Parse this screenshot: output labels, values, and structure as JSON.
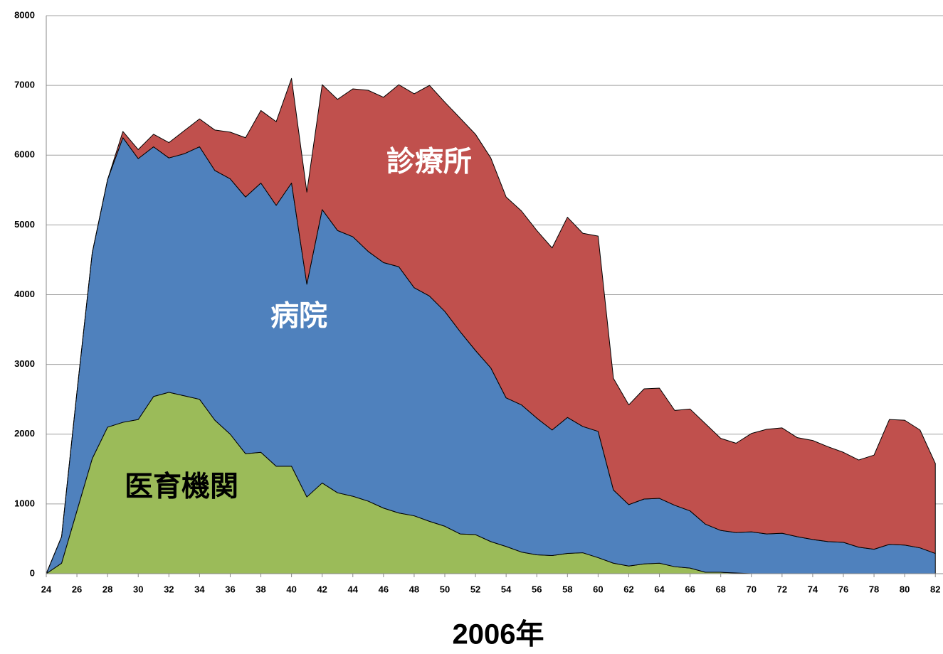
{
  "chart_data": {
    "type": "stacked_area",
    "x": [
      24,
      25,
      26,
      27,
      28,
      29,
      30,
      31,
      32,
      33,
      34,
      35,
      36,
      37,
      38,
      39,
      40,
      41,
      42,
      43,
      44,
      45,
      46,
      47,
      48,
      49,
      50,
      51,
      52,
      53,
      54,
      55,
      56,
      57,
      58,
      59,
      60,
      61,
      62,
      63,
      64,
      65,
      66,
      67,
      68,
      69,
      70,
      71,
      72,
      73,
      74,
      75,
      76,
      77,
      78,
      79,
      80,
      81,
      82
    ],
    "series": [
      {
        "name": "医育機関",
        "color": "#9bbb59",
        "label_color": "#000000",
        "values": [
          0,
          150,
          900,
          1650,
          2100,
          2170,
          2210,
          2540,
          2600,
          2550,
          2500,
          2200,
          2000,
          1720,
          1740,
          1540,
          1540,
          1100,
          1300,
          1160,
          1110,
          1040,
          940,
          870,
          830,
          750,
          680,
          570,
          560,
          460,
          390,
          310,
          270,
          260,
          290,
          300,
          230,
          150,
          110,
          140,
          150,
          100,
          80,
          20,
          20,
          10,
          0,
          0,
          0,
          0,
          0,
          0,
          0,
          0,
          0,
          0,
          0,
          0,
          0
        ]
      },
      {
        "name": "病院",
        "color": "#4f81bd",
        "label_color": "#ffffff",
        "values": [
          0,
          380,
          1700,
          2950,
          3550,
          4080,
          3740,
          3580,
          3360,
          3470,
          3620,
          3580,
          3660,
          3680,
          3860,
          3740,
          4060,
          3050,
          3920,
          3760,
          3720,
          3580,
          3520,
          3530,
          3270,
          3230,
          3080,
          2900,
          2640,
          2490,
          2130,
          2110,
          1960,
          1800,
          1950,
          1810,
          1810,
          1050,
          880,
          930,
          930,
          880,
          820,
          690,
          600,
          580,
          600,
          570,
          580,
          530,
          490,
          460,
          450,
          380,
          350,
          420,
          410,
          370,
          290
        ]
      },
      {
        "name": "診療所",
        "color": "#c0504d",
        "label_color": "#ffffff",
        "values": [
          0,
          0,
          0,
          0,
          0,
          90,
          130,
          180,
          220,
          330,
          400,
          580,
          670,
          850,
          1040,
          1200,
          1500,
          1320,
          1790,
          1880,
          2120,
          2310,
          2370,
          2610,
          2780,
          3020,
          3000,
          3060,
          3100,
          3010,
          2880,
          2780,
          2690,
          2610,
          2870,
          2770,
          2800,
          1600,
          1430,
          1580,
          1580,
          1360,
          1460,
          1440,
          1320,
          1280,
          1410,
          1500,
          1510,
          1420,
          1420,
          1360,
          1290,
          1250,
          1350,
          1790,
          1790,
          1690,
          1290
        ]
      }
    ],
    "xlabel": "2006年",
    "xlim": [
      24,
      82.5
    ],
    "xticks": [
      24,
      26,
      28,
      30,
      32,
      34,
      36,
      38,
      40,
      42,
      44,
      46,
      48,
      50,
      52,
      54,
      56,
      58,
      60,
      62,
      64,
      66,
      68,
      70,
      72,
      74,
      76,
      78,
      80,
      82
    ],
    "ylim": [
      0,
      8000
    ],
    "yticks": [
      0,
      1000,
      2000,
      3000,
      4000,
      5000,
      6000,
      7000,
      8000
    ],
    "grid": true
  }
}
